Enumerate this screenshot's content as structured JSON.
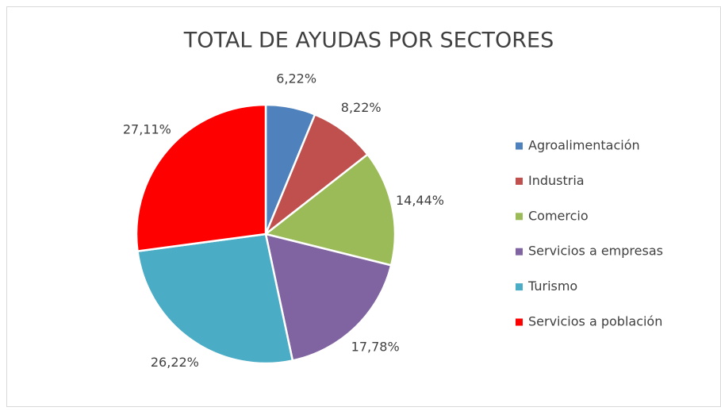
{
  "chart_data": {
    "type": "pie",
    "title": "TOTAL DE AYUDAS POR SECTORES",
    "categories": [
      "Agroalimentación",
      "Industria",
      "Comercio",
      "Servicios a empresas",
      "Turismo",
      "Servicios a población"
    ],
    "values": [
      6.22,
      8.22,
      14.44,
      17.78,
      26.22,
      27.11
    ],
    "value_labels": [
      "6,22%",
      "8,22%",
      "14,44%",
      "17,78%",
      "26,22%",
      "27,11%"
    ],
    "colors": [
      "#4f81bd",
      "#c0504d",
      "#9bbb59",
      "#8064a2",
      "#4bacc6",
      "#ff0000"
    ],
    "legend": "right"
  }
}
